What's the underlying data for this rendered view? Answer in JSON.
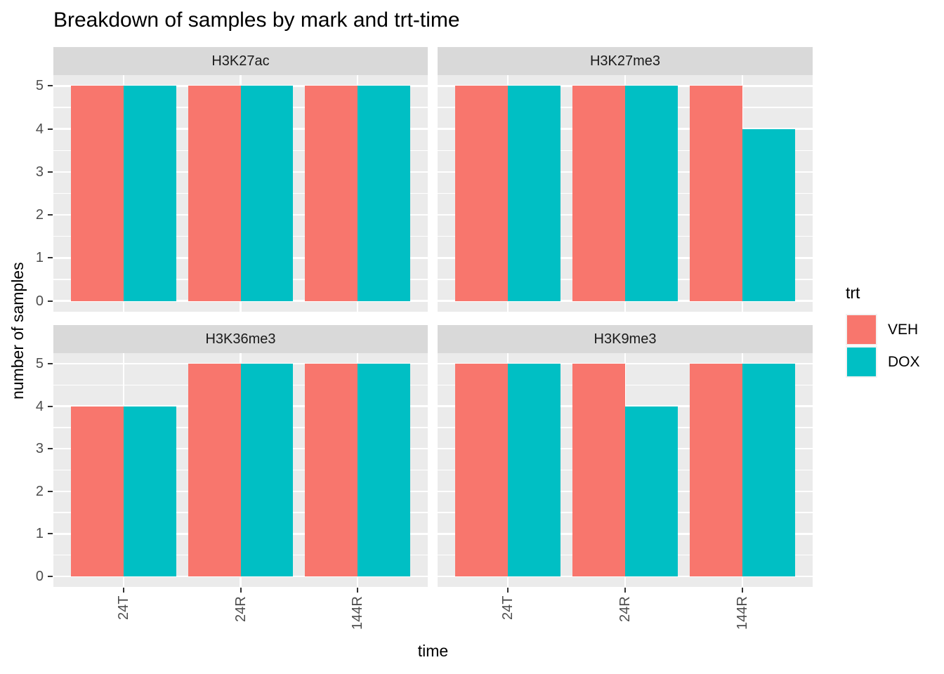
{
  "title": "Breakdown of samples by mark and trt-time",
  "axes": {
    "x_title": "time",
    "y_title": "number of samples",
    "y_tick_labels": [
      "0",
      "1",
      "2",
      "3",
      "4",
      "5"
    ],
    "x_tick_labels": [
      "24T",
      "24R",
      "144R"
    ]
  },
  "legend": {
    "title": "trt",
    "items": [
      {
        "label": "VEH",
        "color": "#F8766D"
      },
      {
        "label": "DOX",
        "color": "#00BFC4"
      }
    ]
  },
  "colors": {
    "veh": "#F8766D",
    "dox": "#00BFC4",
    "panel_bg": "#EBEBEB",
    "strip_bg": "#D9D9D9",
    "grid": "#FFFFFF",
    "axis_text": "#4D4D4D",
    "tick_mark": "#333333"
  },
  "chart_data": {
    "type": "bar",
    "title": "Breakdown of samples by mark and trt-time",
    "xlabel": "time",
    "ylabel": "number of samples",
    "categories": [
      "24T",
      "24R",
      "144R"
    ],
    "ylim": [
      0,
      5
    ],
    "y_ticks": [
      0,
      1,
      2,
      3,
      4,
      5
    ],
    "grid": true,
    "legend_position": "right",
    "legend_title": "trt",
    "series_names": [
      "VEH",
      "DOX"
    ],
    "series_colors": [
      "#F8766D",
      "#00BFC4"
    ],
    "facets": [
      {
        "label": "H3K27ac",
        "series": [
          {
            "name": "VEH",
            "values": [
              5,
              5,
              5
            ]
          },
          {
            "name": "DOX",
            "values": [
              5,
              5,
              5
            ]
          }
        ]
      },
      {
        "label": "H3K27me3",
        "series": [
          {
            "name": "VEH",
            "values": [
              5,
              5,
              5
            ]
          },
          {
            "name": "DOX",
            "values": [
              5,
              5,
              4
            ]
          }
        ]
      },
      {
        "label": "H3K36me3",
        "series": [
          {
            "name": "VEH",
            "values": [
              4,
              5,
              5
            ]
          },
          {
            "name": "DOX",
            "values": [
              4,
              5,
              5
            ]
          }
        ]
      },
      {
        "label": "H3K9me3",
        "series": [
          {
            "name": "VEH",
            "values": [
              5,
              5,
              5
            ]
          },
          {
            "name": "DOX",
            "values": [
              5,
              4,
              5
            ]
          }
        ]
      }
    ]
  }
}
